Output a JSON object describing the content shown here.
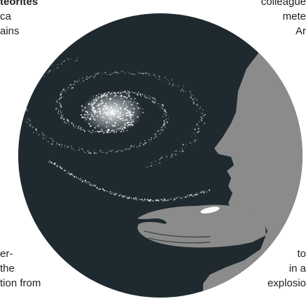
{
  "left_top_text": {
    "lines": [
      "teorites",
      "ca",
      "ains",
      ""
    ]
  },
  "left_bottom_text": {
    "lines": [
      "er-",
      "the",
      "tion from"
    ]
  },
  "right_top_text": {
    "lines": [
      "colleague",
      "mete",
      "Ar"
    ]
  },
  "right_bottom_text": {
    "lines": [
      "to",
      "in a",
      "explosio"
    ]
  },
  "illustration": {
    "circle_color": "#1e2a2f",
    "silhouette_color": "#8b8b8b",
    "galaxy_color": "#ffffff",
    "icon": "galaxy-in-hand-icon"
  }
}
